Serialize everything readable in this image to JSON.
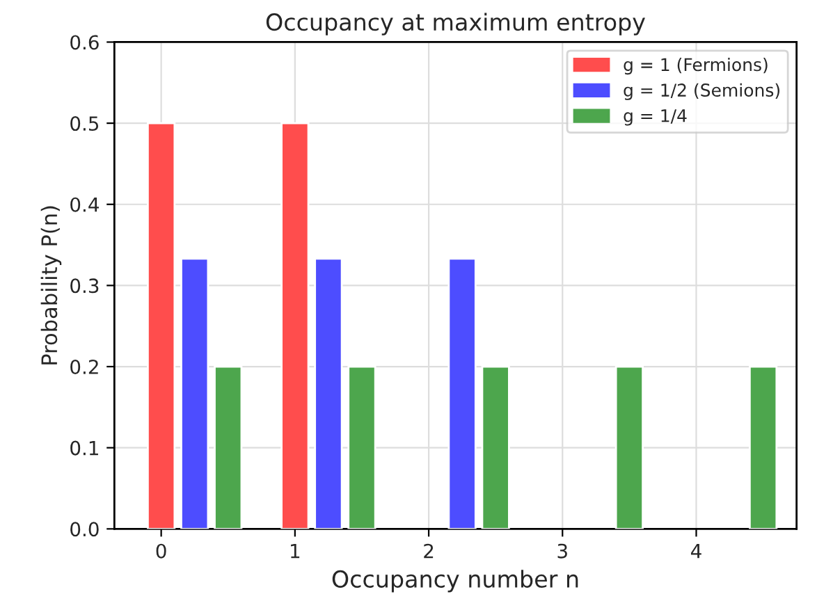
{
  "chart_data": {
    "type": "bar",
    "title": "Occupancy at maximum entropy",
    "xlabel": "Occupancy number n",
    "ylabel": "Probability P(n)",
    "series": [
      {
        "name": "g = 1 (Fermions)",
        "color": "#ff4d4d",
        "x": [
          0,
          1
        ],
        "values": [
          0.5,
          0.5
        ]
      },
      {
        "name": "g = 1/2 (Semions)",
        "color": "#4d4dff",
        "x": [
          0.25,
          1.25,
          2.25
        ],
        "values": [
          0.333,
          0.333,
          0.333
        ]
      },
      {
        "name": "g = 1/4",
        "color": "#4da64d",
        "x": [
          0.5,
          1.5,
          2.5,
          3.5,
          4.5
        ],
        "values": [
          0.2,
          0.2,
          0.2,
          0.2,
          0.2
        ]
      }
    ],
    "xlim": [
      -0.35,
      4.75
    ],
    "xticks": [
      0,
      1,
      2,
      3,
      4
    ],
    "ylim": [
      0,
      0.6
    ],
    "yticks": [
      {
        "value": 0,
        "label": "0.0"
      },
      0.1,
      0.2,
      0.3,
      0.4,
      0.5,
      0.6
    ],
    "grid": true,
    "legend": "top right"
  }
}
